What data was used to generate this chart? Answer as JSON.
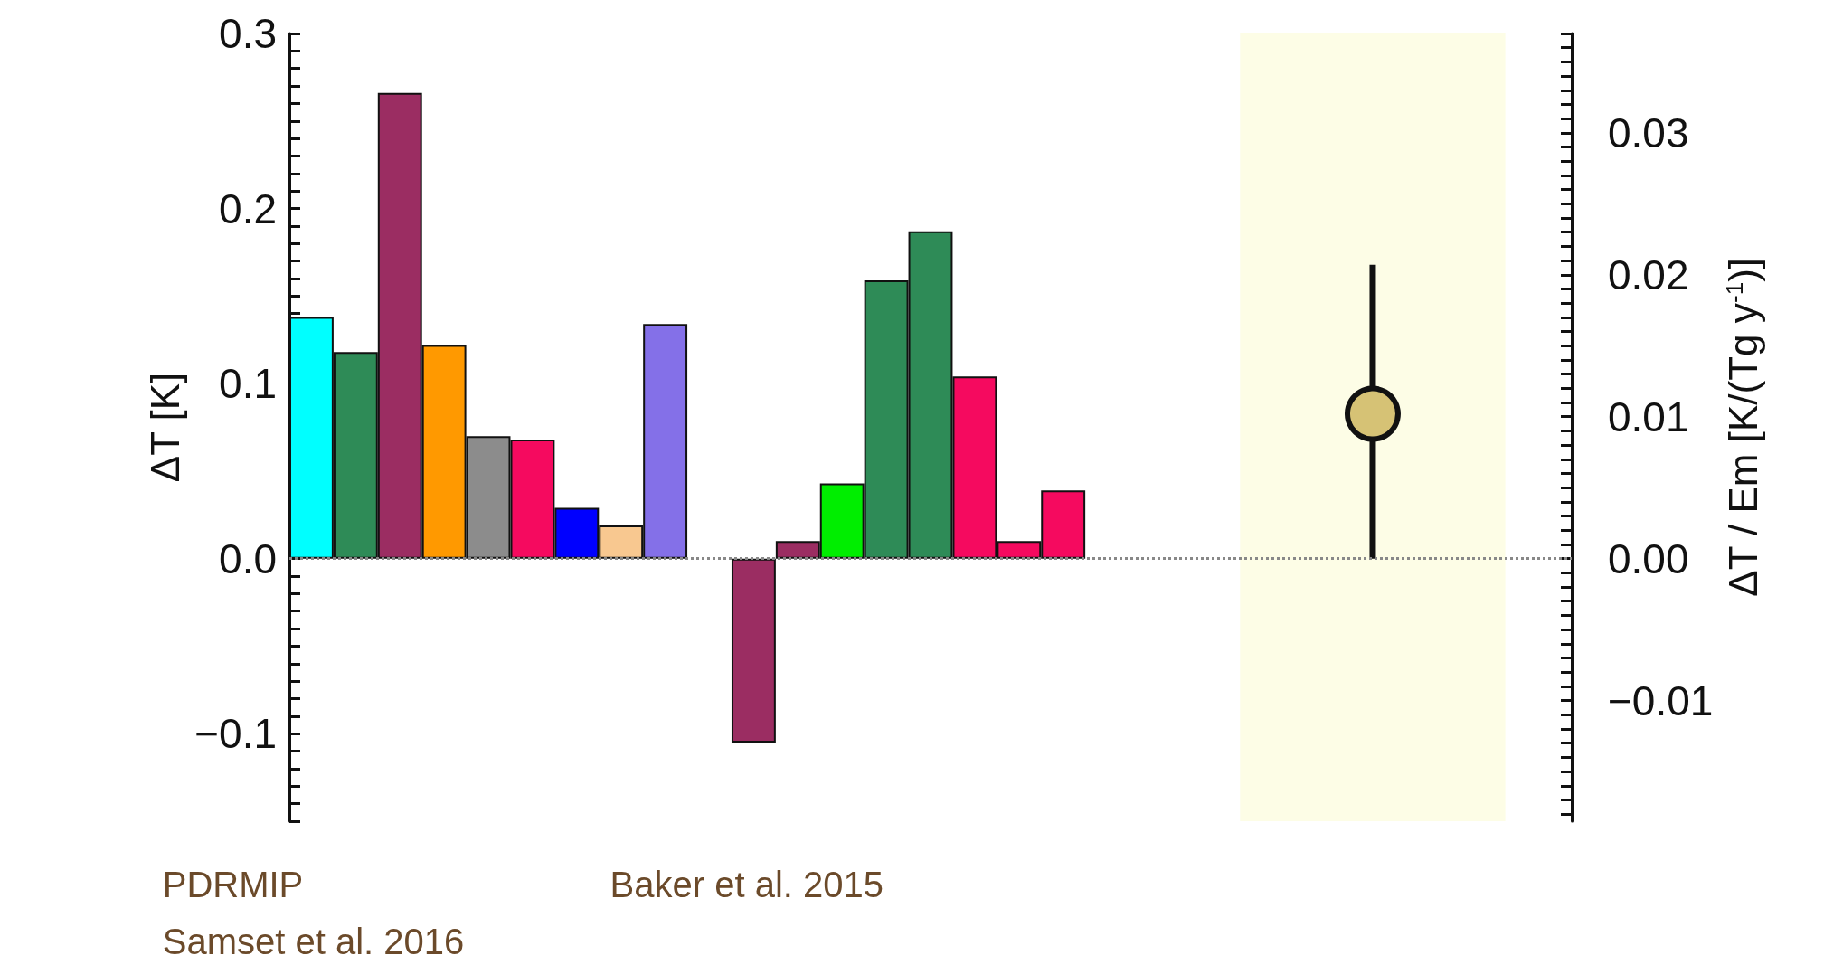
{
  "chart_data": {
    "type": "bar",
    "ylabel": "ΔT [K]",
    "y2label": "ΔT / Em [K/(Tg y$^{-1}$)]",
    "categories": [
      null,
      null,
      null,
      null,
      null,
      null,
      null,
      null,
      null,
      null,
      null,
      null,
      null,
      null,
      null,
      null,
      null,
      null,
      null,
      null,
      null,
      null,
      null,
      null,
      null,
      null,
      null,
      null,
      null
    ],
    "series": [
      {
        "values": [
          0.138,
          0.118,
          0.266,
          0.122,
          0.07,
          0.068,
          0.029,
          0.019,
          0.134,
          null,
          -0.105,
          0.01,
          0.043,
          0.159,
          0.187,
          0.104,
          0.01,
          0.039,
          null,
          null,
          null,
          null,
          null,
          null,
          null,
          null,
          null,
          null,
          null
        ],
        "colors": [
          "#00ffff",
          "#2e8b57",
          "#9b2d62",
          "#ff9900",
          "#8c8c8c",
          "#f50a5f",
          "#0000ff",
          "#f8c890",
          "#8470e8",
          null,
          "#9b2d62",
          "#9b2d62",
          "#00ee00",
          "#2e8b57",
          "#2e8b57",
          "#f50a5f",
          "#f50a5f",
          "#f50a5f",
          null,
          null,
          null,
          null,
          null,
          null,
          null,
          null,
          null,
          null,
          null
        ]
      },
      {
        "type": "scatter",
        "axis": "y2",
        "color": "#d6c275",
        "values": [
          null,
          null,
          null,
          null,
          null,
          null,
          null,
          null,
          null,
          null,
          null,
          null,
          null,
          null,
          null,
          null,
          null,
          null,
          null,
          null,
          null,
          null,
          null,
          null,
          0.0102,
          null,
          null,
          null,
          null
        ],
        "errors": [
          null,
          null,
          null,
          null,
          null,
          null,
          null,
          null,
          null,
          null,
          null,
          null,
          null,
          null,
          null,
          null,
          null,
          null,
          null,
          null,
          null,
          null,
          null,
          null,
          [
            0,
            0.0207
          ],
          null,
          null,
          null,
          null
        ]
      }
    ],
    "ylim": [
      -0.15,
      0.3
    ],
    "yticks": [
      {
        "value": -0.1,
        "label": "−0.1"
      },
      {
        "value": 0,
        "label": "0.0"
      },
      0.1,
      0.2,
      0.3
    ],
    "y2lim": [
      -0.0185,
      0.037
    ],
    "y2ticks": [
      {
        "value": -0.01,
        "label": "−0.01"
      },
      {
        "value": 0,
        "label": "0.00"
      },
      0.01,
      0.02,
      0.03
    ],
    "ref_lines": [
      {
        "axis": "y",
        "value": 0,
        "color": "#888888",
        "line_style": "dotted"
      }
    ],
    "annotations": [
      "PDRMIP",
      "Samset et al. 2016",
      "Baker et al. 2015"
    ],
    "marker": "circle",
    "grid": false,
    "tick_labels": "y"
  }
}
